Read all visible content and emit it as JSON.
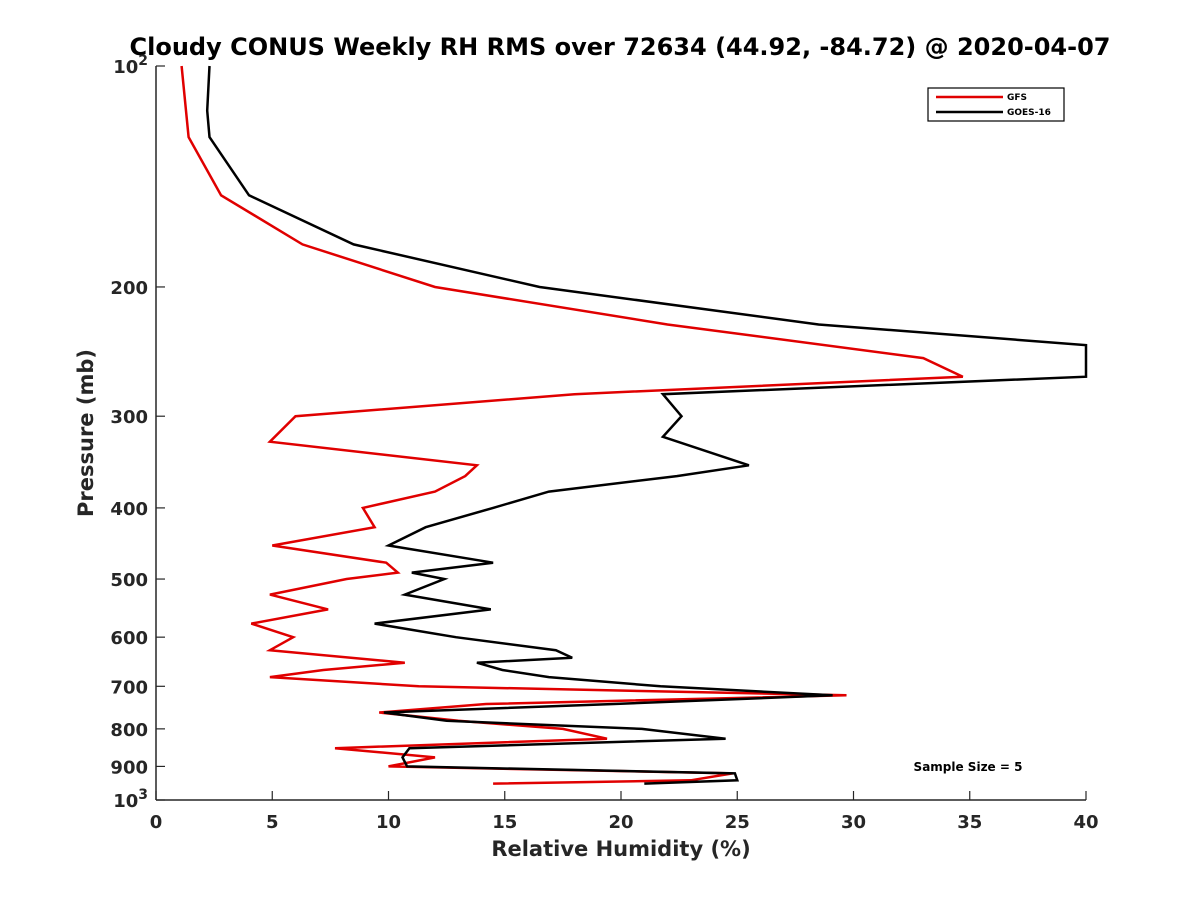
{
  "chart_data": {
    "type": "line",
    "title": "Cloudy CONUS Weekly RH RMS over 72634 (44.92, -84.72) @ 2020-04-07",
    "xlabel": "Relative Humidity (%)",
    "ylabel": "Pressure (mb)",
    "xlim": [
      0,
      40
    ],
    "ylim": [
      100,
      1000
    ],
    "y_scale": "log",
    "y_reversed": true,
    "grid": false,
    "legend_position": "top-right",
    "x_ticks": [
      0,
      5,
      10,
      15,
      20,
      25,
      30,
      35,
      40
    ],
    "x_tick_labels": [
      "0",
      "5",
      "10",
      "15",
      "20",
      "25",
      "30",
      "35",
      "40"
    ],
    "y_ticks": [
      100,
      200,
      300,
      400,
      500,
      600,
      700,
      800,
      900,
      1000
    ],
    "y_tick_labels": [
      "10^2",
      "200",
      "300",
      "400",
      "500",
      "600",
      "700",
      "800",
      "900",
      "10^3"
    ],
    "annotation": "Sample Size = 5",
    "series": [
      {
        "name": "GFS",
        "color": "#e00000",
        "points": [
          [
            1.1,
            100
          ],
          [
            1.4,
            125
          ],
          [
            2.8,
            150
          ],
          [
            6.3,
            175
          ],
          [
            12.0,
            200
          ],
          [
            22.0,
            225
          ],
          [
            33.0,
            250
          ],
          [
            34.7,
            265
          ],
          [
            18.0,
            280
          ],
          [
            6.0,
            300
          ],
          [
            4.9,
            325
          ],
          [
            13.8,
            350
          ],
          [
            13.3,
            362
          ],
          [
            12.0,
            380
          ],
          [
            8.9,
            400
          ],
          [
            9.4,
            425
          ],
          [
            5.0,
            450
          ],
          [
            9.9,
            475
          ],
          [
            10.4,
            490
          ],
          [
            8.2,
            500
          ],
          [
            4.9,
            525
          ],
          [
            7.4,
            550
          ],
          [
            4.1,
            575
          ],
          [
            5.9,
            600
          ],
          [
            4.9,
            625
          ],
          [
            10.7,
            650
          ],
          [
            7.2,
            665
          ],
          [
            4.9,
            680
          ],
          [
            11.3,
            700
          ],
          [
            29.7,
            720
          ],
          [
            14.2,
            740
          ],
          [
            9.6,
            760
          ],
          [
            13.0,
            780
          ],
          [
            17.5,
            800
          ],
          [
            19.4,
            825
          ],
          [
            7.7,
            850
          ],
          [
            12.0,
            875
          ],
          [
            10.0,
            900
          ],
          [
            24.8,
            920
          ],
          [
            23.0,
            940
          ],
          [
            14.5,
            950
          ]
        ]
      },
      {
        "name": "GOES-16",
        "color": "#000000",
        "points": [
          [
            2.3,
            100
          ],
          [
            2.2,
            115
          ],
          [
            2.3,
            125
          ],
          [
            4.0,
            150
          ],
          [
            8.5,
            175
          ],
          [
            16.5,
            200
          ],
          [
            28.5,
            225
          ],
          [
            40.0,
            240
          ],
          [
            40.0,
            265
          ],
          [
            21.8,
            280
          ],
          [
            22.6,
            300
          ],
          [
            21.8,
            320
          ],
          [
            25.5,
            350
          ],
          [
            22.4,
            362
          ],
          [
            16.9,
            380
          ],
          [
            14.5,
            400
          ],
          [
            11.6,
            425
          ],
          [
            10.0,
            450
          ],
          [
            14.5,
            475
          ],
          [
            11.0,
            490
          ],
          [
            12.4,
            500
          ],
          [
            10.7,
            525
          ],
          [
            14.4,
            550
          ],
          [
            9.4,
            575
          ],
          [
            12.9,
            600
          ],
          [
            17.2,
            625
          ],
          [
            17.9,
            640
          ],
          [
            13.8,
            650
          ],
          [
            14.9,
            665
          ],
          [
            16.9,
            680
          ],
          [
            21.7,
            700
          ],
          [
            29.1,
            720
          ],
          [
            19.7,
            740
          ],
          [
            9.8,
            760
          ],
          [
            12.5,
            780
          ],
          [
            20.9,
            800
          ],
          [
            24.5,
            825
          ],
          [
            10.9,
            850
          ],
          [
            10.6,
            875
          ],
          [
            10.8,
            900
          ],
          [
            24.9,
            920
          ],
          [
            25.0,
            940
          ],
          [
            21.0,
            950
          ]
        ]
      }
    ]
  }
}
